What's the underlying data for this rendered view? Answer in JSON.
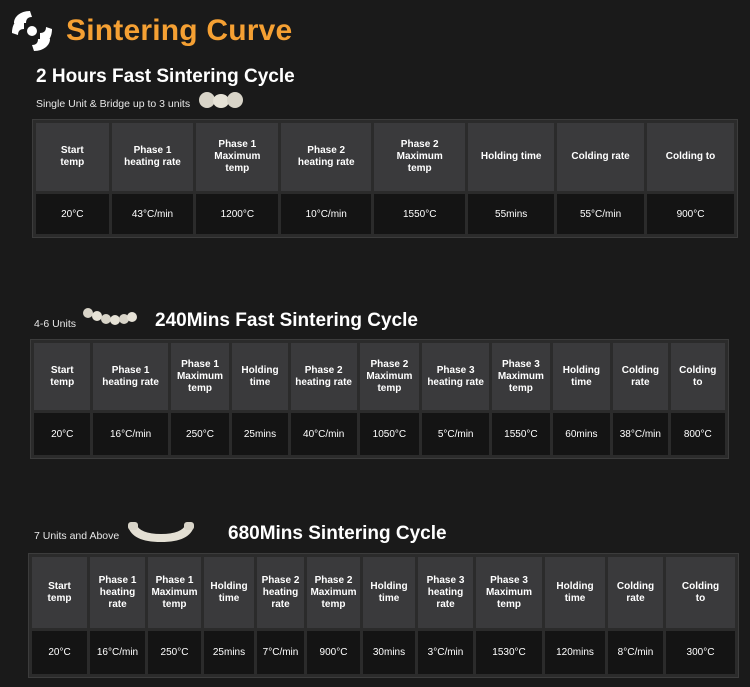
{
  "header": {
    "title": "Sintering Curve",
    "logo_icon": "brand-logo-icon",
    "accent_color": "#f5a033"
  },
  "cycles": [
    {
      "title": "2 Hours Fast Sintering Cycle",
      "subtitle": "Single Unit & Bridge up to 3 units",
      "image_icon": "dental-bridge-3-unit",
      "headers": [
        "Start\ntemp",
        "Phase 1\nheating rate",
        "Phase 1\nMaximum\ntemp",
        "Phase 2\nheating rate",
        "Phase 2\nMaximum\ntemp",
        "Holding time",
        "Colding rate",
        "Colding to"
      ],
      "values": [
        "20°C",
        "43°C/min",
        "1200°C",
        "10°C/min",
        "1550°C",
        "55mins",
        "55°C/min",
        "900°C"
      ]
    },
    {
      "title": "240Mins Fast Sintering Cycle",
      "subtitle": "4-6 Units",
      "image_icon": "dental-bridge-6-unit",
      "headers": [
        "Start\ntemp",
        "Phase 1\nheating rate",
        "Phase 1\nMaximum\ntemp",
        "Holding\ntime",
        "Phase 2\nheating rate",
        "Phase 2\nMaximum\ntemp",
        "Phase 3\nheating rate",
        "Phase 3\nMaximum\ntemp",
        "Holding\ntime",
        "Colding\nrate",
        "Colding\nto"
      ],
      "values": [
        "20°C",
        "16°C/min",
        "250°C",
        "25mins",
        "40°C/min",
        "1050°C",
        "5°C/min",
        "1550°C",
        "60mins",
        "38°C/min",
        "800°C"
      ]
    },
    {
      "title": "680Mins Sintering Cycle",
      "subtitle": "7 Units and  Above",
      "image_icon": "dental-full-arch",
      "headers": [
        "Start\ntemp",
        "Phase 1\nheating\nrate",
        "Phase 1\nMaximum\ntemp",
        "Holding\ntime",
        "Phase 2\nheating\nrate",
        "Phase 2\nMaximum\ntemp",
        "Holding\ntime",
        "Phase 3\nheating\nrate",
        "Phase 3\nMaximum\ntemp",
        "Holding\ntime",
        "Colding\nrate",
        "Colding\nto"
      ],
      "values": [
        "20°C",
        "16°C/min",
        "250°C",
        "25mins",
        "7°C/min",
        "900°C",
        "30mins",
        "3°C/min",
        "1530°C",
        "120mins",
        "8°C/min",
        "300°C"
      ]
    }
  ]
}
